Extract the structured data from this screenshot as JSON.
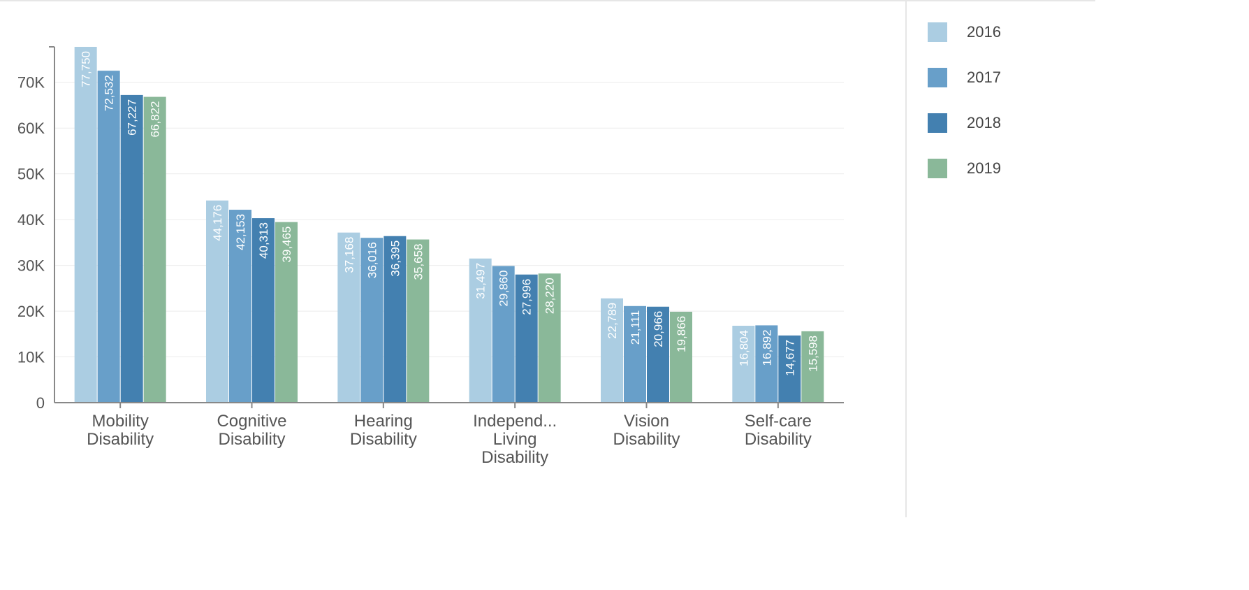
{
  "chart_data": {
    "type": "bar",
    "title": "",
    "xlabel": "",
    "ylabel": "",
    "ylim": [
      0,
      77750
    ],
    "yticks": [
      0,
      10000,
      20000,
      30000,
      40000,
      50000,
      60000,
      70000
    ],
    "ytick_labels": [
      "0",
      "10K",
      "20K",
      "30K",
      "40K",
      "50K",
      "60K",
      "70K"
    ],
    "grid": true,
    "legend_position": "right",
    "categories": [
      [
        "Mobility",
        "Disability"
      ],
      [
        "Cognitive",
        "Disability"
      ],
      [
        "Hearing",
        "Disability"
      ],
      [
        "Independ...",
        "Living",
        "Disability"
      ],
      [
        "Vision",
        "Disability"
      ],
      [
        "Self-care",
        "Disability"
      ]
    ],
    "series": [
      {
        "name": "2016",
        "color": "#abcde2",
        "values": [
          77750,
          44176,
          37168,
          31497,
          22789,
          16804
        ],
        "labels": [
          "77,750",
          "44,176",
          "37,168",
          "31,497",
          "22,789",
          "16,804"
        ]
      },
      {
        "name": "2017",
        "color": "#689fc9",
        "values": [
          72532,
          42153,
          36016,
          29860,
          21111,
          16892
        ],
        "labels": [
          "72,532",
          "42,153",
          "36,016",
          "29,860",
          "21,111",
          "16,892"
        ]
      },
      {
        "name": "2018",
        "color": "#4380b0",
        "values": [
          67227,
          40313,
          36395,
          27996,
          20966,
          14677
        ],
        "labels": [
          "67,227",
          "40,313",
          "36,395",
          "27,996",
          "20,966",
          "14,677"
        ]
      },
      {
        "name": "2019",
        "color": "#8ab899",
        "values": [
          66822,
          39465,
          35658,
          28220,
          19866,
          15598
        ],
        "labels": [
          "66,822",
          "39,465",
          "35,658",
          "28,220",
          "19,866",
          "15,598"
        ]
      }
    ]
  },
  "legend": {
    "items": [
      {
        "label": "2016",
        "color": "#abcde2"
      },
      {
        "label": "2017",
        "color": "#689fc9"
      },
      {
        "label": "2018",
        "color": "#4380b0"
      },
      {
        "label": "2019",
        "color": "#8ab899"
      }
    ]
  }
}
